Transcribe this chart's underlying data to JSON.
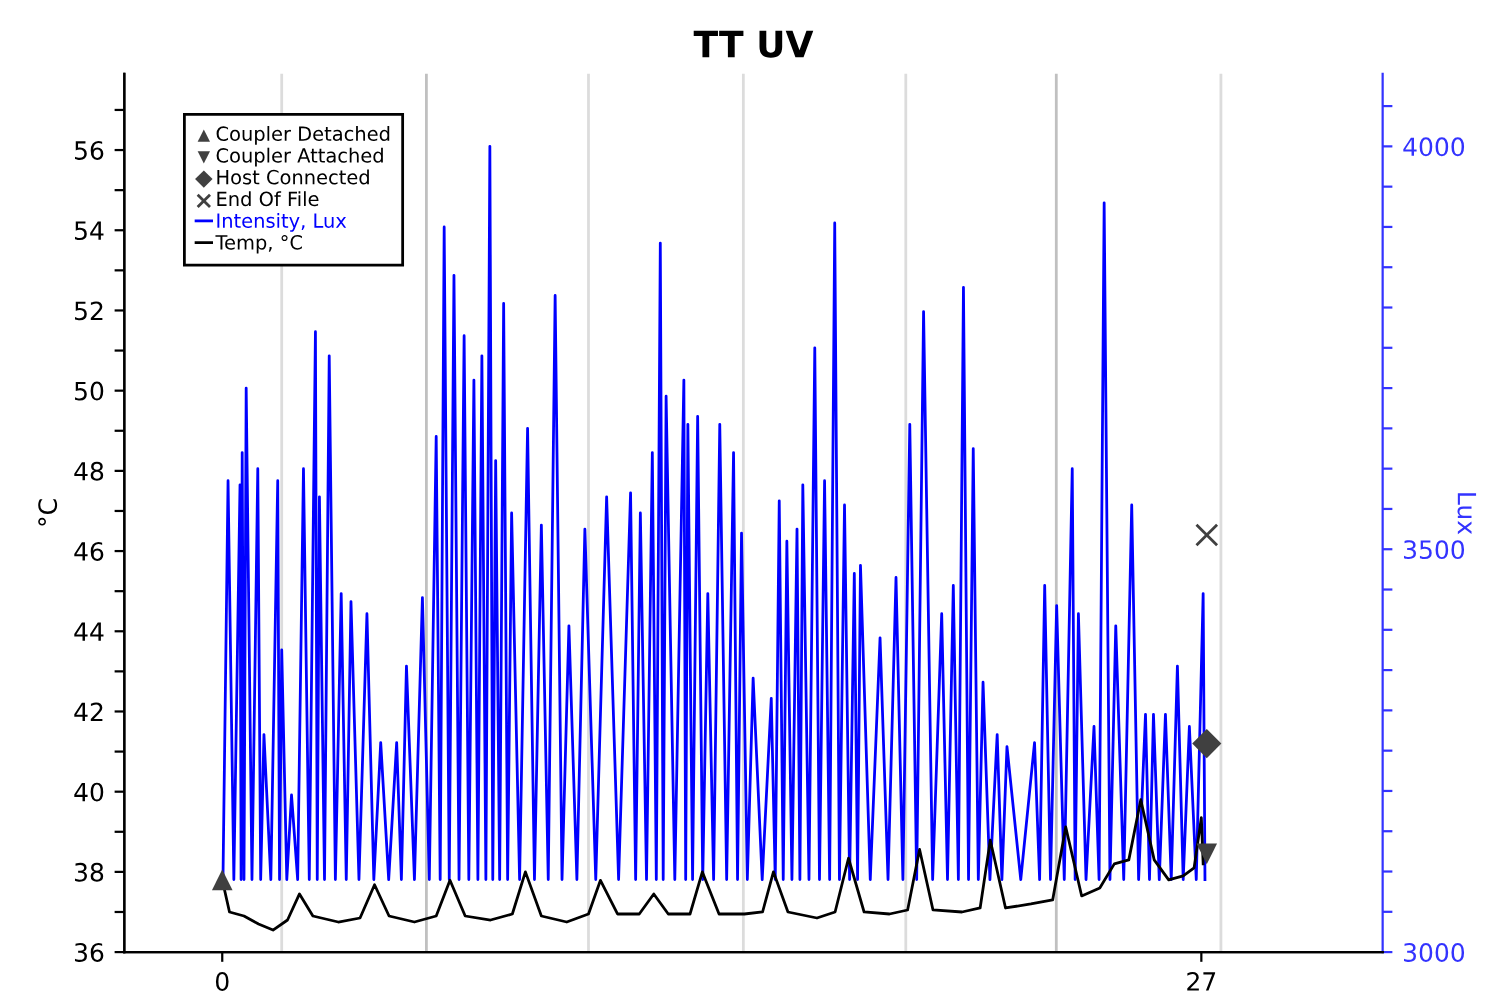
{
  "chart_data": {
    "type": "line",
    "title": "TT UV",
    "ylabel": "°C",
    "y2label": "Lux",
    "xlim": [
      -2.7,
      32
    ],
    "xticks": [
      0,
      27
    ],
    "ylim": [
      36,
      57.9
    ],
    "yticks": [
      36,
      {
        "value": 37,
        "label": null
      },
      38,
      {
        "value": 39,
        "label": null
      },
      40,
      {
        "value": 41,
        "label": null
      },
      42,
      {
        "value": 43,
        "label": null
      },
      44,
      {
        "value": 45,
        "label": null
      },
      46,
      {
        "value": 47,
        "label": null
      },
      48,
      {
        "value": 49,
        "label": null
      },
      50,
      {
        "value": 51,
        "label": null
      },
      52,
      {
        "value": 53,
        "label": null
      },
      54,
      {
        "value": 55,
        "label": null
      },
      56,
      {
        "value": 57,
        "label": null
      }
    ],
    "y2lim": [
      3000,
      4090
    ],
    "y2ticks": [
      3000,
      {
        "value": 3050,
        "label": null
      },
      {
        "value": 3100,
        "label": null
      },
      {
        "value": 3150,
        "label": null
      },
      {
        "value": 3200,
        "label": null
      },
      {
        "value": 3250,
        "label": null
      },
      {
        "value": 3300,
        "label": null
      },
      {
        "value": 3350,
        "label": null
      },
      {
        "value": 3400,
        "label": null
      },
      {
        "value": 3450,
        "label": null
      },
      3500,
      {
        "value": 3550,
        "label": null
      },
      {
        "value": 3600,
        "label": null
      },
      {
        "value": 3650,
        "label": null
      },
      {
        "value": 3700,
        "label": null
      },
      {
        "value": 3750,
        "label": null
      },
      {
        "value": 3800,
        "label": null
      },
      {
        "value": 3850,
        "label": null
      },
      {
        "value": 3900,
        "label": null
      },
      {
        "value": 3950,
        "label": null
      },
      4000,
      {
        "value": 4050,
        "label": null
      }
    ],
    "grid": false,
    "legend": "top left",
    "ref_lines": [
      {
        "axis": "x",
        "value": 1.64,
        "color": "#dcdcdc"
      },
      {
        "axis": "x",
        "value": 5.63,
        "color": "#c0c0c0"
      },
      {
        "axis": "x",
        "value": 10.1,
        "color": "#dcdcdc"
      },
      {
        "axis": "x",
        "value": 14.37,
        "color": "#dcdcdc"
      },
      {
        "axis": "x",
        "value": 18.85,
        "color": "#dcdcdc"
      },
      {
        "axis": "x",
        "value": 23.0,
        "color": "#c0c0c0"
      },
      {
        "axis": "x",
        "value": 27.54,
        "color": "#dcdcdc"
      }
    ],
    "series": [
      {
        "name": "Coupler Detached",
        "type": "scatter",
        "marker": "triangle",
        "color": "#404040",
        "x": [
          0
        ],
        "values": [
          37.8
        ]
      },
      {
        "name": "Coupler Attached",
        "type": "scatter",
        "marker": "triangle_down",
        "color": "#404040",
        "x": [
          27.15
        ],
        "values": [
          38.45
        ]
      },
      {
        "name": "Host Connected",
        "type": "scatter",
        "marker": "diamond",
        "color": "#404040",
        "x": [
          27.15
        ],
        "values": [
          41.2
        ]
      },
      {
        "name": "End Of File",
        "type": "scatter",
        "marker": "cross",
        "color": "#404040",
        "x": [
          27.15
        ],
        "values": [
          46.4
        ]
      },
      {
        "name": "Intensity, Lux",
        "axis": "y2",
        "color": "#0000ff",
        "x": [
          0.02,
          0.16,
          0.32,
          0.49,
          0.52,
          0.55,
          0.6,
          0.66,
          0.82,
          0.98,
          1.06,
          1.15,
          1.34,
          1.53,
          1.58,
          1.64,
          1.78,
          1.91,
          2.08,
          2.24,
          2.4,
          2.57,
          2.62,
          2.68,
          2.82,
          2.95,
          3.12,
          3.28,
          3.42,
          3.55,
          3.77,
          3.99,
          4.18,
          4.37,
          4.59,
          4.81,
          4.94,
          5.08,
          5.3,
          5.52,
          5.71,
          5.9,
          6.01,
          6.12,
          6.26,
          6.39,
          6.53,
          6.67,
          6.8,
          6.94,
          7.05,
          7.16,
          7.27,
          7.38,
          7.46,
          7.54,
          7.65,
          7.76,
          7.87,
          7.98,
          8.2,
          8.42,
          8.61,
          8.8,
          8.99,
          9.18,
          9.37,
          9.56,
          9.78,
          10.0,
          10.3,
          10.6,
          10.93,
          11.26,
          11.4,
          11.53,
          11.7,
          11.86,
          11.97,
          12.08,
          12.16,
          12.24,
          12.48,
          12.73,
          12.78,
          12.84,
          12.97,
          13.11,
          13.25,
          13.39,
          13.55,
          13.72,
          13.91,
          14.1,
          14.21,
          14.32,
          14.48,
          14.64,
          14.89,
          15.14,
          15.25,
          15.36,
          15.47,
          15.57,
          15.71,
          15.85,
          15.93,
          16.01,
          16.18,
          16.34,
          16.47,
          16.61,
          16.75,
          16.89,
          17.02,
          17.16,
          17.3,
          17.43,
          17.52,
          17.6,
          17.87,
          18.14,
          18.36,
          18.58,
          18.77,
          18.96,
          19.15,
          19.34,
          19.59,
          19.84,
          20.0,
          20.16,
          20.3,
          20.44,
          20.58,
          20.71,
          20.85,
          20.98,
          21.17,
          21.37,
          21.5,
          21.64,
          22.02,
          22.4,
          22.54,
          22.68,
          22.84,
          23.01,
          23.22,
          23.44,
          23.52,
          23.61,
          23.82,
          24.04,
          24.18,
          24.32,
          24.48,
          24.64,
          24.86,
          25.08,
          25.27,
          25.46,
          25.57,
          25.68,
          25.84,
          26.01,
          26.17,
          26.34,
          26.5,
          26.67,
          26.86,
          27.05,
          27.1
        ],
        "values": [
          3090,
          3585,
          3090,
          3580,
          3090,
          3620,
          3090,
          3700,
          3090,
          3600,
          3090,
          3270,
          3090,
          3585,
          3090,
          3375,
          3090,
          3195,
          3090,
          3600,
          3090,
          3770,
          3090,
          3565,
          3090,
          3740,
          3090,
          3445,
          3090,
          3435,
          3090,
          3420,
          3090,
          3260,
          3090,
          3260,
          3090,
          3355,
          3090,
          3440,
          3090,
          3640,
          3090,
          3900,
          3090,
          3840,
          3090,
          3765,
          3090,
          3710,
          3090,
          3740,
          3090,
          4000,
          3090,
          3610,
          3090,
          3805,
          3090,
          3545,
          3090,
          3650,
          3090,
          3530,
          3090,
          3815,
          3090,
          3405,
          3090,
          3525,
          3090,
          3565,
          3090,
          3570,
          3090,
          3545,
          3090,
          3620,
          3090,
          3880,
          3090,
          3690,
          3090,
          3710,
          3090,
          3655,
          3090,
          3665,
          3090,
          3445,
          3090,
          3655,
          3090,
          3620,
          3090,
          3520,
          3090,
          3340,
          3090,
          3315,
          3090,
          3560,
          3090,
          3510,
          3090,
          3525,
          3090,
          3580,
          3090,
          3750,
          3090,
          3585,
          3090,
          3905,
          3090,
          3555,
          3090,
          3470,
          3090,
          3480,
          3090,
          3390,
          3090,
          3465,
          3090,
          3655,
          3090,
          3795,
          3090,
          3420,
          3090,
          3455,
          3090,
          3825,
          3090,
          3625,
          3090,
          3335,
          3090,
          3270,
          3090,
          3255,
          3090,
          3260,
          3090,
          3455,
          3090,
          3430,
          3090,
          3600,
          3090,
          3420,
          3090,
          3280,
          3090,
          3930,
          3090,
          3405,
          3090,
          3555,
          3090,
          3295,
          3090,
          3295,
          3090,
          3295,
          3090,
          3355,
          3090,
          3280,
          3090,
          3445,
          3090
        ]
      },
      {
        "name": "Temp, °C",
        "color": "#000000",
        "x": [
          0,
          0.2,
          0.6,
          1.0,
          1.4,
          1.8,
          2.13,
          2.5,
          3.2,
          3.8,
          4.2,
          4.6,
          5.3,
          5.9,
          6.28,
          6.7,
          7.4,
          8.0,
          8.36,
          8.8,
          9.5,
          10.1,
          10.43,
          10.9,
          11.5,
          11.9,
          12.3,
          12.9,
          13.24,
          13.7,
          14.4,
          14.9,
          15.2,
          15.6,
          16.4,
          16.9,
          17.27,
          17.7,
          18.4,
          18.9,
          19.23,
          19.6,
          20.4,
          20.9,
          21.18,
          21.6,
          22.3,
          22.9,
          23.26,
          23.7,
          24.2,
          24.6,
          25.0,
          25.33,
          25.7,
          26.1,
          26.5,
          26.8,
          27.0,
          27.05
        ],
        "values": [
          37.8,
          37.0,
          36.9,
          36.7,
          36.55,
          36.8,
          37.45,
          36.9,
          36.75,
          36.85,
          37.68,
          36.9,
          36.75,
          36.9,
          37.79,
          36.9,
          36.8,
          36.95,
          38.0,
          36.9,
          36.75,
          36.95,
          37.79,
          36.95,
          36.95,
          37.45,
          36.95,
          36.95,
          38.0,
          36.95,
          36.95,
          37.0,
          38.0,
          37.0,
          36.85,
          37.0,
          38.34,
          37.0,
          36.95,
          37.05,
          38.56,
          37.05,
          37.0,
          37.1,
          38.79,
          37.1,
          37.2,
          37.3,
          39.12,
          37.4,
          37.6,
          38.2,
          38.3,
          39.8,
          38.3,
          37.8,
          37.9,
          38.1,
          39.35,
          38.2
        ]
      }
    ]
  }
}
